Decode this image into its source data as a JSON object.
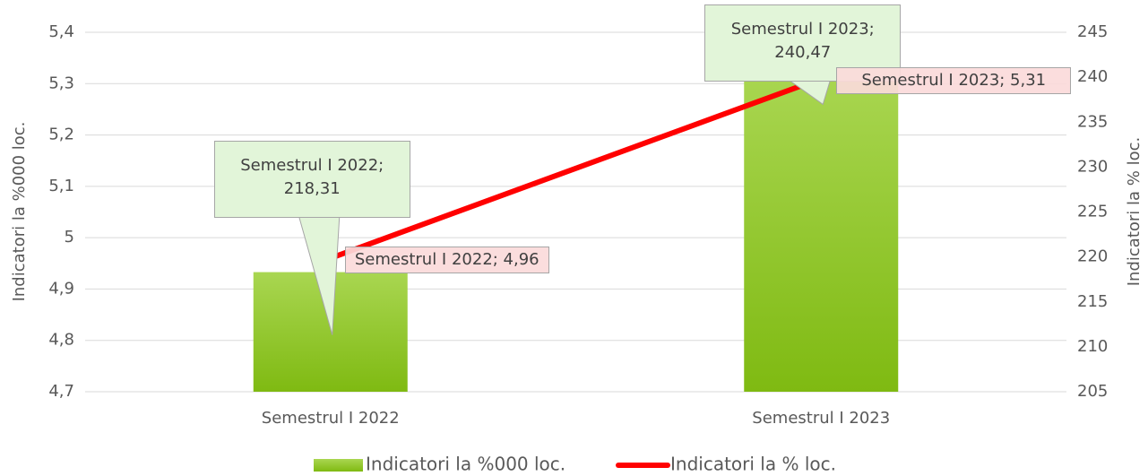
{
  "chart_data": {
    "type": "bar-line",
    "categories": [
      "Semestrul I  2022",
      "Semestrul I  2023"
    ],
    "series": [
      {
        "name": "Indicatori la %000 loc.",
        "type": "bar",
        "axis": "y2",
        "color": "#8cc41f",
        "values": [
          218.31,
          240.47
        ],
        "value_labels": [
          "Semestrul I 2022; 218,31",
          "Semestrul I 2023; 240,47"
        ]
      },
      {
        "name": "Indicatori la % loc.",
        "type": "line",
        "axis": "y",
        "color": "#ff0000",
        "values": [
          4.96,
          5.31
        ],
        "value_labels": [
          "Semestrul I 2022; 4,96",
          "Semestrul I 2023; 5,31"
        ]
      }
    ],
    "ylabel": "Indicatori la %000 loc.",
    "y2label": "Indicatori la % loc.",
    "ylim": [
      4.7,
      5.4
    ],
    "yticks": [
      {
        "value": 4.7,
        "label": "4,7"
      },
      {
        "value": 4.8,
        "label": "4,8"
      },
      {
        "value": 4.9,
        "label": "4,9"
      },
      5,
      {
        "value": 5.1,
        "label": "5,1"
      },
      {
        "value": 5.2,
        "label": "5,2"
      },
      {
        "value": 5.3,
        "label": "5,3"
      },
      {
        "value": 5.4,
        "label": "5,4"
      }
    ],
    "y2lim": [
      205,
      245
    ],
    "y2ticks": [
      205,
      210,
      215,
      220,
      225,
      230,
      235,
      240,
      245
    ],
    "grid": true,
    "legend": "bottom"
  }
}
